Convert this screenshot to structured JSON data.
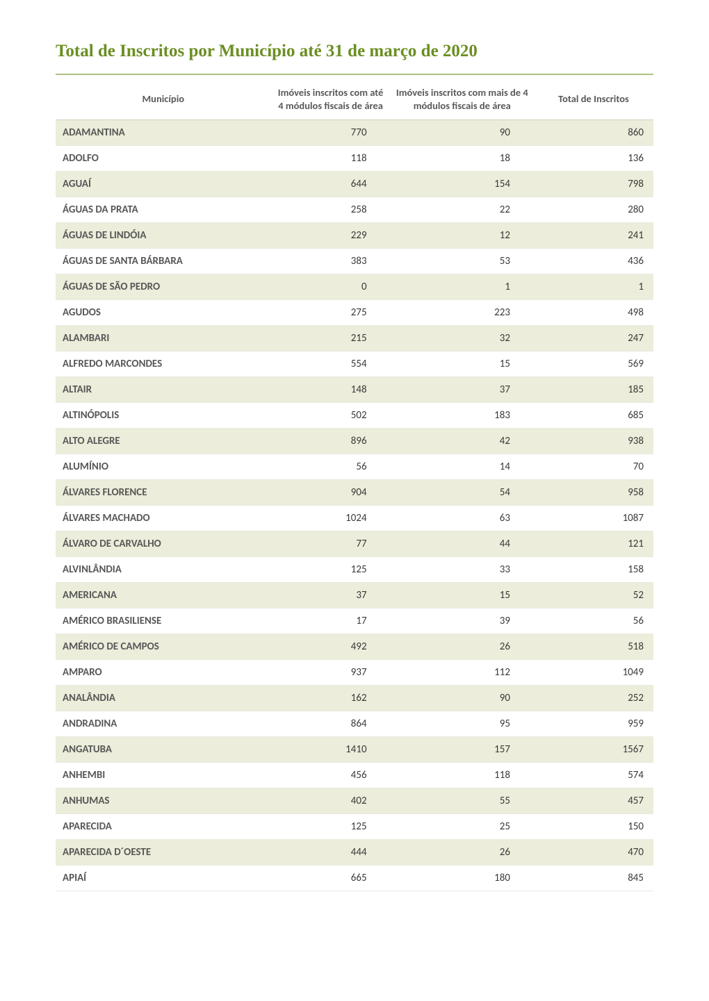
{
  "title": "Total de Inscritos por Município até 31 de março de 2020",
  "columns": {
    "municipio": "Município",
    "col_a": "Imóveis inscritos com até 4 módulos fiscais de área",
    "col_b": "Imóveis inscritos com mais de 4 módulos fiscais de área",
    "col_c": "Total de Inscritos"
  },
  "rows": [
    {
      "municipio": "ADAMANTINA",
      "a": "770",
      "b": "90",
      "c": "860"
    },
    {
      "municipio": "ADOLFO",
      "a": "118",
      "b": "18",
      "c": "136"
    },
    {
      "municipio": "AGUAÍ",
      "a": "644",
      "b": "154",
      "c": "798"
    },
    {
      "municipio": "ÁGUAS DA PRATA",
      "a": "258",
      "b": "22",
      "c": "280"
    },
    {
      "municipio": "ÁGUAS DE LINDÓIA",
      "a": "229",
      "b": "12",
      "c": "241"
    },
    {
      "municipio": "ÁGUAS DE SANTA BÁRBARA",
      "a": "383",
      "b": "53",
      "c": "436"
    },
    {
      "municipio": "ÁGUAS DE SÃO PEDRO",
      "a": "0",
      "b": "1",
      "c": "1"
    },
    {
      "municipio": "AGUDOS",
      "a": "275",
      "b": "223",
      "c": "498"
    },
    {
      "municipio": "ALAMBARI",
      "a": "215",
      "b": "32",
      "c": "247"
    },
    {
      "municipio": "ALFREDO MARCONDES",
      "a": "554",
      "b": "15",
      "c": "569"
    },
    {
      "municipio": "ALTAIR",
      "a": "148",
      "b": "37",
      "c": "185"
    },
    {
      "municipio": "ALTINÓPOLIS",
      "a": "502",
      "b": "183",
      "c": "685"
    },
    {
      "municipio": "ALTO ALEGRE",
      "a": "896",
      "b": "42",
      "c": "938"
    },
    {
      "municipio": "ALUMÍNIO",
      "a": "56",
      "b": "14",
      "c": "70"
    },
    {
      "municipio": "ÁLVARES FLORENCE",
      "a": "904",
      "b": "54",
      "c": "958"
    },
    {
      "municipio": "ÁLVARES MACHADO",
      "a": "1024",
      "b": "63",
      "c": "1087"
    },
    {
      "municipio": "ÁLVARO DE CARVALHO",
      "a": "77",
      "b": "44",
      "c": "121"
    },
    {
      "municipio": "ALVINLÂNDIA",
      "a": "125",
      "b": "33",
      "c": "158"
    },
    {
      "municipio": "AMERICANA",
      "a": "37",
      "b": "15",
      "c": "52"
    },
    {
      "municipio": "AMÉRICO BRASILIENSE",
      "a": "17",
      "b": "39",
      "c": "56"
    },
    {
      "municipio": "AMÉRICO DE CAMPOS",
      "a": "492",
      "b": "26",
      "c": "518"
    },
    {
      "municipio": "AMPARO",
      "a": "937",
      "b": "112",
      "c": "1049"
    },
    {
      "municipio": "ANALÂNDIA",
      "a": "162",
      "b": "90",
      "c": "252"
    },
    {
      "municipio": "ANDRADINA",
      "a": "864",
      "b": "95",
      "c": "959"
    },
    {
      "municipio": "ANGATUBA",
      "a": "1410",
      "b": "157",
      "c": "1567"
    },
    {
      "municipio": "ANHEMBI",
      "a": "456",
      "b": "118",
      "c": "574"
    },
    {
      "municipio": "ANHUMAS",
      "a": "402",
      "b": "55",
      "c": "457"
    },
    {
      "municipio": "APARECIDA",
      "a": "125",
      "b": "25",
      "c": "150"
    },
    {
      "municipio": "APARECIDA D´OESTE",
      "a": "444",
      "b": "26",
      "c": "470"
    },
    {
      "municipio": "APIAÍ",
      "a": "665",
      "b": "180",
      "c": "845"
    }
  ],
  "styles": {
    "title_color": "#6b8e23",
    "row_odd_bg": "#ecedda",
    "row_even_bg": "#ffffff",
    "text_color": "#3a3a3a",
    "header_text_color": "#595959"
  }
}
